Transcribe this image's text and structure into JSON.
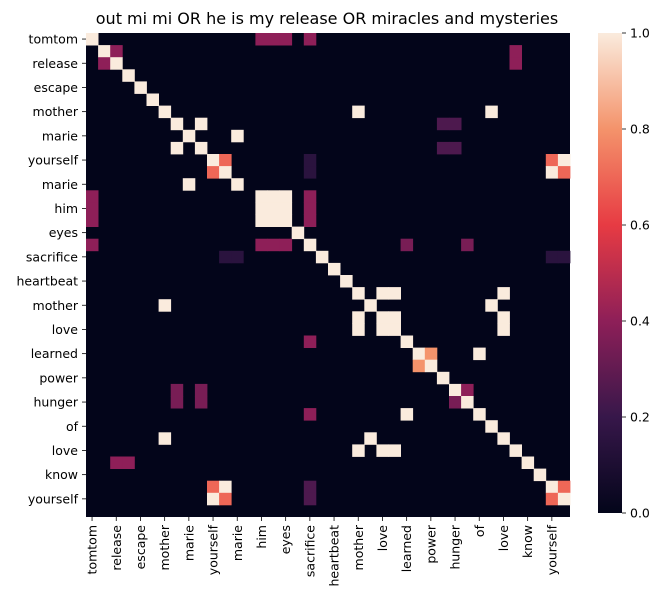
{
  "chart_data": {
    "type": "heatmap",
    "title": "out mi mi OR he is my release OR miracles and mysteries",
    "labels": [
      "tomtom",
      "",
      "release",
      "",
      "escape",
      "",
      "mother",
      "",
      "marie",
      "",
      "yourself",
      "",
      "marie",
      "",
      "him",
      "",
      "eyes",
      "",
      "sacrifice",
      "",
      "heartbeat",
      "",
      "mother",
      "",
      "love",
      "",
      "learned",
      "",
      "power",
      "",
      "hunger",
      "",
      "of",
      "",
      "love",
      "",
      "know",
      "",
      "yourself",
      ""
    ],
    "x_tick_labels": [
      "tomtom",
      "release",
      "escape",
      "mother",
      "marie",
      "yourself",
      "marie",
      "him",
      "eyes",
      "sacrifice",
      "heartbeat",
      "mother",
      "love",
      "learned",
      "power",
      "hunger",
      "of",
      "love",
      "know",
      "yourself"
    ],
    "y_tick_labels": [
      "tomtom",
      "release",
      "escape",
      "mother",
      "marie",
      "yourself",
      "marie",
      "him",
      "eyes",
      "sacrifice",
      "heartbeat",
      "mother",
      "love",
      "learned",
      "power",
      "hunger",
      "of",
      "love",
      "know",
      "yourself"
    ],
    "n": 40,
    "vmin": 0.0,
    "vmax": 1.0,
    "colorbar_ticks": [
      "0.0",
      "0.2",
      "0.4",
      "0.6",
      "0.8",
      "1.0"
    ],
    "cells": [
      [
        0,
        0,
        1.0
      ],
      [
        0,
        14,
        0.4
      ],
      [
        0,
        15,
        0.4
      ],
      [
        0,
        16,
        0.4
      ],
      [
        0,
        18,
        0.4
      ],
      [
        1,
        1,
        1.0
      ],
      [
        1,
        2,
        0.4
      ],
      [
        1,
        35,
        0.4
      ],
      [
        2,
        1,
        0.4
      ],
      [
        2,
        2,
        1.0
      ],
      [
        2,
        35,
        0.4
      ],
      [
        3,
        3,
        1.0
      ],
      [
        4,
        4,
        1.0
      ],
      [
        5,
        5,
        1.0
      ],
      [
        6,
        6,
        1.0
      ],
      [
        6,
        22,
        1.0
      ],
      [
        6,
        33,
        1.0
      ],
      [
        7,
        7,
        1.0
      ],
      [
        7,
        9,
        1.0
      ],
      [
        7,
        29,
        0.25
      ],
      [
        7,
        30,
        0.25
      ],
      [
        8,
        8,
        1.0
      ],
      [
        8,
        12,
        1.0
      ],
      [
        9,
        7,
        1.0
      ],
      [
        9,
        9,
        1.0
      ],
      [
        9,
        29,
        0.25
      ],
      [
        9,
        30,
        0.25
      ],
      [
        10,
        10,
        1.0
      ],
      [
        10,
        11,
        0.7
      ],
      [
        10,
        18,
        0.15
      ],
      [
        10,
        38,
        0.7
      ],
      [
        10,
        39,
        1.0
      ],
      [
        11,
        10,
        0.7
      ],
      [
        11,
        11,
        1.0
      ],
      [
        11,
        18,
        0.15
      ],
      [
        11,
        38,
        1.0
      ],
      [
        11,
        39,
        0.7
      ],
      [
        12,
        8,
        1.0
      ],
      [
        12,
        12,
        1.0
      ],
      [
        13,
        0,
        0.4
      ],
      [
        13,
        14,
        1.0
      ],
      [
        13,
        15,
        1.0
      ],
      [
        13,
        16,
        1.0
      ],
      [
        13,
        18,
        0.4
      ],
      [
        14,
        0,
        0.4
      ],
      [
        14,
        14,
        1.0
      ],
      [
        14,
        15,
        1.0
      ],
      [
        14,
        16,
        1.0
      ],
      [
        14,
        18,
        0.4
      ],
      [
        15,
        0,
        0.4
      ],
      [
        15,
        14,
        1.0
      ],
      [
        15,
        15,
        1.0
      ],
      [
        15,
        16,
        1.0
      ],
      [
        15,
        18,
        0.4
      ],
      [
        16,
        17,
        1.0
      ],
      [
        17,
        0,
        0.4
      ],
      [
        17,
        14,
        0.4
      ],
      [
        17,
        15,
        0.4
      ],
      [
        17,
        16,
        0.4
      ],
      [
        17,
        18,
        1.0
      ],
      [
        17,
        26,
        0.35
      ],
      [
        17,
        31,
        0.35
      ],
      [
        18,
        11,
        0.15
      ],
      [
        18,
        12,
        0.15
      ],
      [
        18,
        19,
        1.0
      ],
      [
        18,
        38,
        0.15
      ],
      [
        18,
        39,
        0.15
      ],
      [
        19,
        20,
        1.0
      ],
      [
        20,
        21,
        1.0
      ],
      [
        21,
        22,
        1.0
      ],
      [
        21,
        24,
        1.0
      ],
      [
        21,
        25,
        1.0
      ],
      [
        21,
        34,
        1.0
      ],
      [
        22,
        6,
        1.0
      ],
      [
        22,
        23,
        1.0
      ],
      [
        22,
        33,
        1.0
      ],
      [
        23,
        22,
        1.0
      ],
      [
        23,
        24,
        1.0
      ],
      [
        23,
        25,
        1.0
      ],
      [
        23,
        34,
        1.0
      ],
      [
        24,
        22,
        1.0
      ],
      [
        24,
        24,
        1.0
      ],
      [
        24,
        25,
        1.0
      ],
      [
        24,
        34,
        1.0
      ],
      [
        25,
        18,
        0.4
      ],
      [
        25,
        26,
        1.0
      ],
      [
        26,
        27,
        1.0
      ],
      [
        26,
        28,
        0.8
      ],
      [
        26,
        32,
        1.0
      ],
      [
        27,
        27,
        0.8
      ],
      [
        27,
        28,
        1.0
      ],
      [
        28,
        29,
        1.0
      ],
      [
        29,
        7,
        0.35
      ],
      [
        29,
        9,
        0.35
      ],
      [
        29,
        30,
        1.0
      ],
      [
        29,
        31,
        0.4
      ],
      [
        30,
        7,
        0.35
      ],
      [
        30,
        9,
        0.35
      ],
      [
        30,
        30,
        0.35
      ],
      [
        30,
        31,
        1.0
      ],
      [
        31,
        18,
        0.4
      ],
      [
        31,
        26,
        1.0
      ],
      [
        31,
        32,
        1.0
      ],
      [
        32,
        33,
        1.0
      ],
      [
        33,
        6,
        1.0
      ],
      [
        33,
        23,
        1.0
      ],
      [
        33,
        34,
        1.0
      ],
      [
        34,
        22,
        1.0
      ],
      [
        34,
        24,
        1.0
      ],
      [
        34,
        25,
        1.0
      ],
      [
        34,
        35,
        1.0
      ],
      [
        35,
        2,
        0.4
      ],
      [
        35,
        3,
        0.4
      ],
      [
        35,
        36,
        1.0
      ],
      [
        36,
        37,
        1.0
      ],
      [
        37,
        10,
        0.7
      ],
      [
        37,
        11,
        1.0
      ],
      [
        37,
        18,
        0.25
      ],
      [
        37,
        38,
        1.0
      ],
      [
        37,
        39,
        0.7
      ],
      [
        38,
        10,
        1.0
      ],
      [
        38,
        11,
        0.7
      ],
      [
        38,
        18,
        0.25
      ],
      [
        38,
        38,
        0.7
      ],
      [
        38,
        39,
        1.0
      ]
    ]
  }
}
